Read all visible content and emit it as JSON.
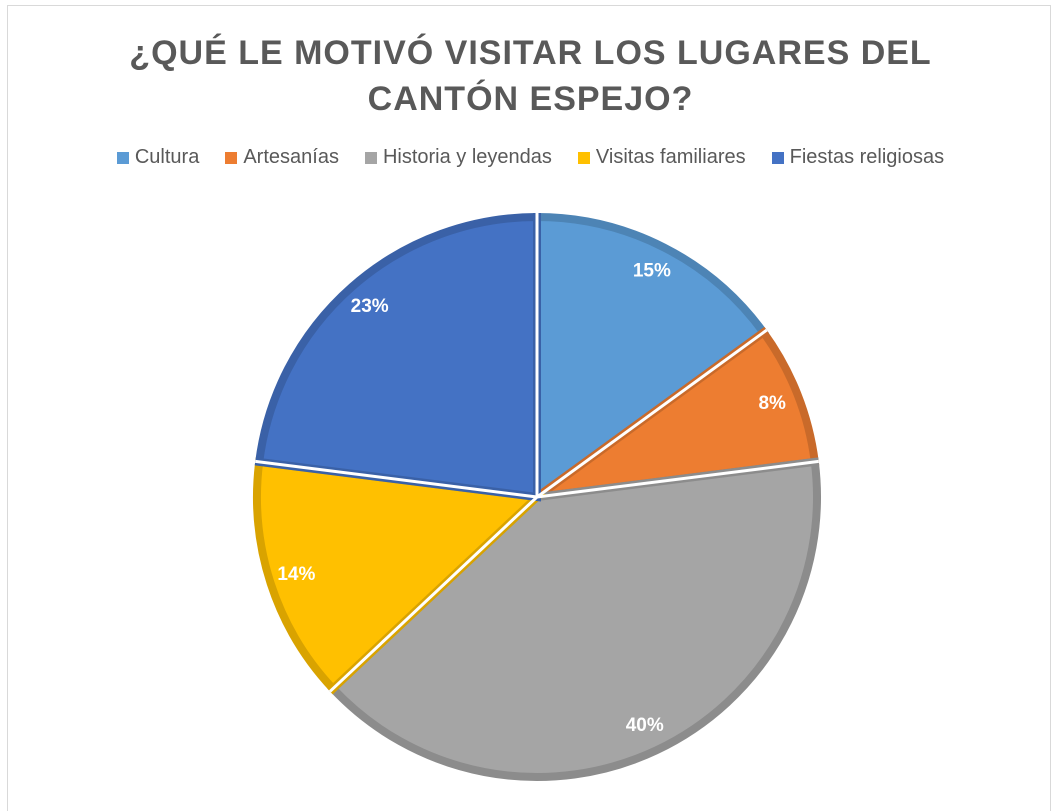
{
  "chart_data": {
    "type": "pie",
    "title": "¿QUÉ LE MOTIVÓ VISITAR LOS LUGARES DEL CANTÓN ESPEJO?",
    "categories": [
      "Cultura",
      "Artesanías",
      "Historia y leyendas",
      "Visitas familiares",
      "Fiestas religiosas"
    ],
    "values": [
      15,
      8,
      40,
      14,
      23
    ],
    "value_labels": [
      "15%",
      "8%",
      "40%",
      "14%",
      "23%"
    ],
    "colors": [
      "#5b9bd5",
      "#ed7d31",
      "#a5a5a5",
      "#ffc000",
      "#4472c4"
    ],
    "legend": "top"
  }
}
